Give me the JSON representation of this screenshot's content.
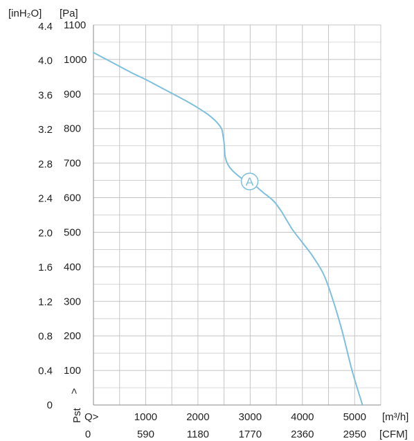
{
  "chart_data": {
    "type": "line",
    "title": "",
    "units": {
      "y_primary": "[Pa]",
      "y_secondary": "[inH₂O]",
      "x_primary": "[m³/h]",
      "x_secondary": "[CFM]"
    },
    "axis_captions": {
      "pst": "Pst",
      "pst_arrow": ">",
      "q": "Q>"
    },
    "x_primary_ticks": [
      {
        "value": 1000,
        "label": "1000"
      },
      {
        "value": 2000,
        "label": "2000"
      },
      {
        "value": 3000,
        "label": "3000"
      },
      {
        "value": 4000,
        "label": "4000"
      },
      {
        "value": 5000,
        "label": "5000"
      }
    ],
    "x_secondary_ticks": [
      {
        "value": 0,
        "label": "0"
      },
      {
        "value": 1000,
        "label": "590"
      },
      {
        "value": 2000,
        "label": "1180"
      },
      {
        "value": 3000,
        "label": "1770"
      },
      {
        "value": 4000,
        "label": "2360"
      },
      {
        "value": 5000,
        "label": "2950"
      }
    ],
    "y_primary_ticks": [
      {
        "value": 0,
        "label": ""
      },
      {
        "value": 100,
        "label": "100"
      },
      {
        "value": 200,
        "label": "200"
      },
      {
        "value": 300,
        "label": "300"
      },
      {
        "value": 400,
        "label": "400"
      },
      {
        "value": 500,
        "label": "500"
      },
      {
        "value": 600,
        "label": "600"
      },
      {
        "value": 700,
        "label": "700"
      },
      {
        "value": 800,
        "label": "800"
      },
      {
        "value": 900,
        "label": "900"
      },
      {
        "value": 1000,
        "label": "1000"
      },
      {
        "value": 1100,
        "label": "1100"
      }
    ],
    "y_secondary_ticks": [
      {
        "value": 0,
        "label": "0"
      },
      {
        "value": 99.6,
        "label": "0.4"
      },
      {
        "value": 199.3,
        "label": "0.8"
      },
      {
        "value": 298.9,
        "label": "1.2"
      },
      {
        "value": 398.5,
        "label": "1.6"
      },
      {
        "value": 498.2,
        "label": "2.0"
      },
      {
        "value": 597.8,
        "label": "2.4"
      },
      {
        "value": 697.4,
        "label": "2.8"
      },
      {
        "value": 797.1,
        "label": "3.2"
      },
      {
        "value": 896.7,
        "label": "3.6"
      },
      {
        "value": 996.4,
        "label": "4.0"
      },
      {
        "value": 1096.0,
        "label": "4.4"
      }
    ],
    "xlim": [
      0,
      5500
    ],
    "ylim": [
      0,
      1100
    ],
    "x_gridlines": [
      500,
      1000,
      1500,
      2000,
      2500,
      3000,
      3500,
      4000,
      4500,
      5000,
      5500
    ],
    "y_gridlines": [
      0,
      50,
      100,
      150,
      200,
      250,
      300,
      350,
      400,
      450,
      500,
      550,
      600,
      650,
      700,
      750,
      800,
      850,
      900,
      950,
      1000,
      1050,
      1100
    ],
    "grid": true,
    "line_color": "#7dbfdd",
    "grid_color": "#c4c4c4",
    "series": [
      {
        "x": [
          0,
          250,
          500,
          750,
          1000,
          1250,
          1500,
          1750,
          2000,
          2200,
          2350,
          2450,
          2480,
          2500,
          2510,
          2520,
          2560,
          2650,
          2800,
          2900,
          3050,
          3250,
          3450,
          3600,
          3800,
          4000,
          4200,
          4400,
          4550,
          4750,
          4950,
          5150
        ],
        "y": [
          1020,
          1000,
          980,
          960,
          942,
          922,
          902,
          882,
          860,
          840,
          820,
          800,
          780,
          760,
          740,
          720,
          700,
          680,
          660,
          650,
          640,
          615,
          590,
          560,
          510,
          470,
          430,
          380,
          320,
          220,
          100,
          0
        ]
      }
    ],
    "annotations": [
      {
        "text": "A",
        "x": 2990,
        "y": 647
      }
    ]
  }
}
